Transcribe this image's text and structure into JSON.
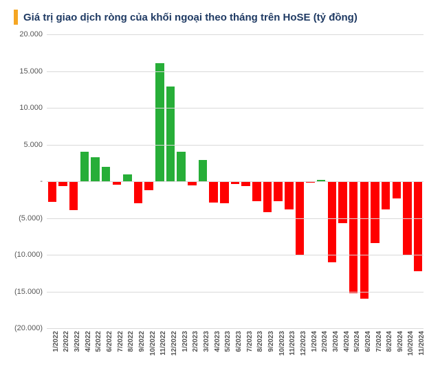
{
  "chart": {
    "type": "bar",
    "title": "Giá trị giao dịch ròng của khối ngoại theo tháng trên HoSE (tỷ đồng)",
    "title_accent_color": "#f5a623",
    "title_color": "#1f3a63",
    "title_fontsize": 15,
    "background_color": "#ffffff",
    "grid_color": "#d9d9d9",
    "axis_label_color": "#555555",
    "x_label_fontsize": 10,
    "y_label_fontsize": 11,
    "ylim_min": -20000,
    "ylim_max": 20000,
    "yticks": [
      {
        "v": 20000,
        "label": "20.000"
      },
      {
        "v": 15000,
        "label": "15.000"
      },
      {
        "v": 10000,
        "label": "10.000"
      },
      {
        "v": 5000,
        "label": "5.000"
      },
      {
        "v": 0,
        "label": "-"
      },
      {
        "v": -5000,
        "label": "(5.000)"
      },
      {
        "v": -10000,
        "label": "(10.000)"
      },
      {
        "v": -15000,
        "label": "(15.000)"
      },
      {
        "v": -20000,
        "label": "(20.000)"
      }
    ],
    "positive_color": "#27ae38",
    "negative_color": "#ff0000",
    "bar_width_ratio": 0.8,
    "data": [
      {
        "label": "1/2022",
        "value": -2800
      },
      {
        "label": "2/2022",
        "value": -700
      },
      {
        "label": "3/2022",
        "value": -3900
      },
      {
        "label": "4/2022",
        "value": 4000
      },
      {
        "label": "5/2022",
        "value": 3300
      },
      {
        "label": "6/2022",
        "value": 2000
      },
      {
        "label": "7/2022",
        "value": -500
      },
      {
        "label": "8/2022",
        "value": 900
      },
      {
        "label": "9/2022",
        "value": -3000
      },
      {
        "label": "10/2022",
        "value": -1200
      },
      {
        "label": "11/2022",
        "value": 16100
      },
      {
        "label": "12/2022",
        "value": 12900
      },
      {
        "label": "1/2023",
        "value": 4000
      },
      {
        "label": "2/2023",
        "value": -600
      },
      {
        "label": "3/2023",
        "value": 2900
      },
      {
        "label": "4/2023",
        "value": -2900
      },
      {
        "label": "5/2023",
        "value": -3000
      },
      {
        "label": "6/2023",
        "value": -400
      },
      {
        "label": "7/2023",
        "value": -700
      },
      {
        "label": "8/2023",
        "value": -2700
      },
      {
        "label": "9/2023",
        "value": -4200
      },
      {
        "label": "10/2023",
        "value": -2700
      },
      {
        "label": "11/2023",
        "value": -3800
      },
      {
        "label": "12/2023",
        "value": -10000
      },
      {
        "label": "1/2024",
        "value": -200
      },
      {
        "label": "2/2024",
        "value": 200
      },
      {
        "label": "3/2024",
        "value": -11000
      },
      {
        "label": "4/2024",
        "value": -5700
      },
      {
        "label": "5/2024",
        "value": -15200
      },
      {
        "label": "6/2024",
        "value": -16000
      },
      {
        "label": "7/2024",
        "value": -8400
      },
      {
        "label": "8/2024",
        "value": -3800
      },
      {
        "label": "9/2024",
        "value": -2300
      },
      {
        "label": "10/2024",
        "value": -10000
      },
      {
        "label": "11/2024",
        "value": -12200
      }
    ]
  }
}
